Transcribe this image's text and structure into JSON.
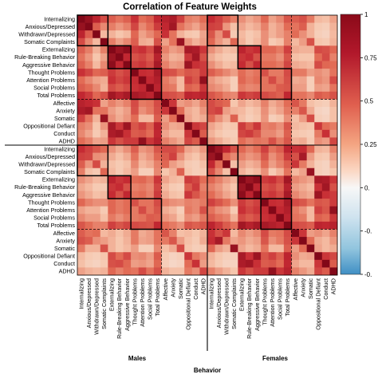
{
  "chart_data": {
    "type": "heatmap",
    "title": "Correlation of Feature Weights",
    "xlabel": "Behavior",
    "column_groups": [
      "Males",
      "Females"
    ],
    "row_groups": [
      "Males",
      "Females"
    ],
    "features": [
      "Internalizing",
      "Anxious/Depressed",
      "Withdrawn/Depressed",
      "Somatic Complaints",
      "Externalizing",
      "Rule-Breaking Behavior",
      "Aggressive Behavior",
      "Thought Problems",
      "Attention Problems",
      "Social Problems",
      "Total Problems",
      "Affective",
      "Anxiety",
      "Somatic",
      "Oppositional Defiant",
      "Conduct",
      "ADHD"
    ],
    "colorbar": {
      "ticks": [
        1,
        0.75,
        0.5,
        0.25,
        0,
        -0.25,
        -0.5
      ],
      "tick_labels": [
        "1",
        "0.75",
        "0.5",
        "0.25",
        "0.",
        "-0.",
        "-0."
      ],
      "range": [
        -0.5,
        1
      ],
      "colors": {
        "high": "#8b0a19",
        "mid": "#f7f7f7",
        "low": "#3f8fc4"
      }
    },
    "boxes": [
      [
        0,
        3
      ],
      [
        4,
        6
      ],
      [
        7,
        10
      ]
    ],
    "correlations": [
      [
        1.0,
        0.92,
        0.78,
        0.62,
        0.55,
        0.48,
        0.54,
        0.72,
        0.5,
        0.56,
        0.76,
        0.8,
        0.84,
        0.66,
        0.45,
        0.42,
        0.5,
        0.74,
        0.66,
        0.55,
        0.45,
        0.4,
        0.33,
        0.38,
        0.52,
        0.35,
        0.42,
        0.58,
        0.55,
        0.6,
        0.46,
        0.28,
        0.26,
        0.35
      ],
      [
        0.92,
        1.0,
        0.55,
        0.42,
        0.45,
        0.38,
        0.44,
        0.64,
        0.42,
        0.5,
        0.68,
        0.76,
        0.88,
        0.48,
        0.4,
        0.34,
        0.44,
        0.66,
        0.64,
        0.38,
        0.26,
        0.34,
        0.28,
        0.32,
        0.44,
        0.3,
        0.36,
        0.5,
        0.48,
        0.55,
        0.3,
        0.22,
        0.2,
        0.3
      ],
      [
        0.78,
        0.55,
        1.0,
        0.28,
        0.3,
        0.24,
        0.28,
        0.52,
        0.35,
        0.42,
        0.52,
        0.72,
        0.48,
        0.3,
        0.24,
        0.22,
        0.34,
        0.58,
        0.4,
        0.62,
        0.22,
        0.28,
        0.22,
        0.26,
        0.4,
        0.3,
        0.36,
        0.44,
        0.5,
        0.4,
        0.3,
        0.2,
        0.18,
        0.28
      ],
      [
        0.62,
        0.42,
        0.28,
        1.0,
        0.45,
        0.35,
        0.42,
        0.55,
        0.32,
        0.3,
        0.6,
        0.35,
        0.48,
        0.92,
        0.38,
        0.3,
        0.36,
        0.52,
        0.38,
        0.3,
        0.52,
        0.3,
        0.22,
        0.28,
        0.4,
        0.22,
        0.26,
        0.44,
        0.28,
        0.36,
        0.6,
        0.24,
        0.22,
        0.3
      ],
      [
        0.55,
        0.45,
        0.3,
        0.45,
        1.0,
        0.9,
        0.96,
        0.68,
        0.72,
        0.62,
        0.88,
        0.44,
        0.36,
        0.4,
        0.86,
        0.84,
        0.7,
        0.4,
        0.32,
        0.26,
        0.28,
        0.78,
        0.7,
        0.74,
        0.52,
        0.52,
        0.46,
        0.66,
        0.32,
        0.3,
        0.3,
        0.62,
        0.6,
        0.52
      ],
      [
        0.48,
        0.38,
        0.24,
        0.35,
        0.9,
        1.0,
        0.76,
        0.6,
        0.64,
        0.56,
        0.8,
        0.38,
        0.3,
        0.32,
        0.7,
        0.88,
        0.6,
        0.32,
        0.26,
        0.22,
        0.22,
        0.7,
        0.74,
        0.6,
        0.46,
        0.46,
        0.4,
        0.58,
        0.26,
        0.24,
        0.24,
        0.5,
        0.62,
        0.44
      ],
      [
        0.54,
        0.44,
        0.28,
        0.42,
        0.96,
        0.76,
        1.0,
        0.66,
        0.7,
        0.62,
        0.86,
        0.44,
        0.36,
        0.38,
        0.9,
        0.72,
        0.68,
        0.4,
        0.32,
        0.26,
        0.28,
        0.74,
        0.6,
        0.76,
        0.5,
        0.5,
        0.46,
        0.64,
        0.32,
        0.3,
        0.28,
        0.62,
        0.52,
        0.5
      ],
      [
        0.72,
        0.64,
        0.52,
        0.55,
        0.68,
        0.6,
        0.66,
        1.0,
        0.74,
        0.72,
        0.86,
        0.62,
        0.6,
        0.5,
        0.58,
        0.56,
        0.68,
        0.55,
        0.48,
        0.42,
        0.36,
        0.5,
        0.44,
        0.48,
        0.6,
        0.46,
        0.46,
        0.62,
        0.46,
        0.46,
        0.36,
        0.4,
        0.36,
        0.48
      ],
      [
        0.5,
        0.42,
        0.35,
        0.32,
        0.72,
        0.64,
        0.7,
        0.74,
        1.0,
        0.76,
        0.82,
        0.46,
        0.4,
        0.28,
        0.66,
        0.58,
        0.94,
        0.38,
        0.32,
        0.28,
        0.2,
        0.52,
        0.46,
        0.5,
        0.48,
        0.62,
        0.48,
        0.6,
        0.32,
        0.34,
        0.2,
        0.42,
        0.38,
        0.62
      ],
      [
        0.56,
        0.5,
        0.42,
        0.3,
        0.62,
        0.56,
        0.62,
        0.72,
        0.76,
        1.0,
        0.78,
        0.48,
        0.46,
        0.28,
        0.54,
        0.5,
        0.7,
        0.42,
        0.38,
        0.32,
        0.2,
        0.46,
        0.42,
        0.44,
        0.48,
        0.48,
        0.56,
        0.58,
        0.36,
        0.36,
        0.2,
        0.36,
        0.34,
        0.48
      ],
      [
        0.76,
        0.68,
        0.52,
        0.6,
        0.88,
        0.8,
        0.86,
        0.86,
        0.82,
        0.78,
        1.0,
        0.62,
        0.6,
        0.55,
        0.78,
        0.76,
        0.8,
        0.58,
        0.52,
        0.44,
        0.42,
        0.7,
        0.64,
        0.68,
        0.62,
        0.58,
        0.54,
        0.76,
        0.48,
        0.48,
        0.42,
        0.56,
        0.52,
        0.6
      ],
      [
        0.8,
        0.76,
        0.72,
        0.35,
        0.44,
        0.38,
        0.44,
        0.62,
        0.46,
        0.48,
        0.62,
        1.0,
        0.7,
        0.36,
        0.4,
        0.34,
        0.44,
        0.62,
        0.56,
        0.52,
        0.24,
        0.34,
        0.28,
        0.32,
        0.44,
        0.32,
        0.38,
        0.5,
        0.58,
        0.46,
        0.26,
        0.22,
        0.2,
        0.3
      ],
      [
        0.84,
        0.88,
        0.48,
        0.48,
        0.36,
        0.3,
        0.36,
        0.6,
        0.4,
        0.46,
        0.6,
        0.7,
        1.0,
        0.5,
        0.32,
        0.28,
        0.38,
        0.62,
        0.66,
        0.36,
        0.3,
        0.28,
        0.22,
        0.26,
        0.4,
        0.28,
        0.34,
        0.46,
        0.44,
        0.58,
        0.32,
        0.18,
        0.16,
        0.26
      ],
      [
        0.66,
        0.48,
        0.3,
        0.92,
        0.4,
        0.32,
        0.38,
        0.5,
        0.28,
        0.28,
        0.55,
        0.36,
        0.5,
        1.0,
        0.34,
        0.28,
        0.32,
        0.52,
        0.4,
        0.3,
        0.54,
        0.26,
        0.2,
        0.24,
        0.38,
        0.2,
        0.24,
        0.4,
        0.26,
        0.36,
        0.62,
        0.2,
        0.18,
        0.26
      ],
      [
        0.45,
        0.4,
        0.24,
        0.38,
        0.86,
        0.7,
        0.9,
        0.58,
        0.66,
        0.54,
        0.78,
        0.4,
        0.32,
        0.34,
        1.0,
        0.7,
        0.64,
        0.34,
        0.28,
        0.22,
        0.24,
        0.68,
        0.56,
        0.7,
        0.44,
        0.46,
        0.4,
        0.58,
        0.28,
        0.26,
        0.24,
        0.7,
        0.5,
        0.46
      ],
      [
        0.42,
        0.34,
        0.22,
        0.3,
        0.84,
        0.88,
        0.72,
        0.56,
        0.58,
        0.5,
        0.76,
        0.34,
        0.28,
        0.28,
        0.7,
        1.0,
        0.56,
        0.3,
        0.24,
        0.2,
        0.2,
        0.64,
        0.68,
        0.58,
        0.42,
        0.42,
        0.36,
        0.54,
        0.24,
        0.22,
        0.2,
        0.46,
        0.72,
        0.4
      ],
      [
        0.5,
        0.44,
        0.34,
        0.36,
        0.7,
        0.6,
        0.68,
        0.68,
        0.94,
        0.7,
        0.8,
        0.44,
        0.38,
        0.32,
        0.64,
        0.56,
        1.0,
        0.38,
        0.32,
        0.26,
        0.22,
        0.5,
        0.44,
        0.48,
        0.46,
        0.6,
        0.46,
        0.58,
        0.3,
        0.32,
        0.22,
        0.4,
        0.36,
        0.64
      ],
      [
        0.74,
        0.66,
        0.58,
        0.52,
        0.4,
        0.32,
        0.4,
        0.55,
        0.38,
        0.42,
        0.58,
        0.62,
        0.62,
        0.52,
        0.34,
        0.3,
        0.38,
        1.0,
        0.9,
        0.76,
        0.6,
        0.52,
        0.44,
        0.5,
        0.66,
        0.48,
        0.55,
        0.78,
        0.72,
        0.74,
        0.52,
        0.3,
        0.28,
        0.44
      ],
      [
        0.66,
        0.64,
        0.4,
        0.38,
        0.32,
        0.26,
        0.32,
        0.48,
        0.32,
        0.38,
        0.52,
        0.56,
        0.66,
        0.4,
        0.28,
        0.24,
        0.32,
        0.9,
        1.0,
        0.5,
        0.42,
        0.44,
        0.38,
        0.42,
        0.58,
        0.4,
        0.48,
        0.68,
        0.6,
        0.86,
        0.36,
        0.24,
        0.22,
        0.36
      ],
      [
        0.55,
        0.38,
        0.62,
        0.3,
        0.26,
        0.22,
        0.26,
        0.42,
        0.28,
        0.32,
        0.44,
        0.52,
        0.36,
        0.3,
        0.22,
        0.2,
        0.26,
        0.76,
        0.5,
        1.0,
        0.26,
        0.36,
        0.3,
        0.34,
        0.5,
        0.36,
        0.44,
        0.56,
        0.7,
        0.46,
        0.3,
        0.2,
        0.18,
        0.3
      ],
      [
        0.45,
        0.26,
        0.22,
        0.52,
        0.28,
        0.22,
        0.28,
        0.36,
        0.2,
        0.2,
        0.42,
        0.24,
        0.3,
        0.54,
        0.24,
        0.2,
        0.22,
        0.6,
        0.42,
        0.26,
        1.0,
        0.3,
        0.24,
        0.28,
        0.4,
        0.22,
        0.3,
        0.48,
        0.28,
        0.34,
        0.92,
        0.2,
        0.18,
        0.24
      ],
      [
        0.4,
        0.34,
        0.28,
        0.3,
        0.78,
        0.7,
        0.74,
        0.5,
        0.52,
        0.46,
        0.7,
        0.34,
        0.28,
        0.26,
        0.68,
        0.64,
        0.5,
        0.52,
        0.44,
        0.36,
        0.3,
        1.0,
        0.9,
        0.96,
        0.68,
        0.72,
        0.62,
        0.88,
        0.42,
        0.38,
        0.34,
        0.86,
        0.84,
        0.7
      ],
      [
        0.33,
        0.28,
        0.22,
        0.22,
        0.7,
        0.74,
        0.6,
        0.44,
        0.46,
        0.42,
        0.64,
        0.28,
        0.22,
        0.2,
        0.56,
        0.68,
        0.44,
        0.44,
        0.38,
        0.3,
        0.24,
        0.9,
        1.0,
        0.78,
        0.6,
        0.64,
        0.56,
        0.8,
        0.36,
        0.32,
        0.28,
        0.72,
        0.88,
        0.6
      ],
      [
        0.38,
        0.32,
        0.26,
        0.28,
        0.74,
        0.6,
        0.76,
        0.48,
        0.5,
        0.44,
        0.68,
        0.32,
        0.26,
        0.24,
        0.7,
        0.58,
        0.48,
        0.5,
        0.42,
        0.34,
        0.28,
        0.96,
        0.78,
        1.0,
        0.66,
        0.7,
        0.62,
        0.86,
        0.42,
        0.36,
        0.32,
        0.9,
        0.72,
        0.68
      ],
      [
        0.52,
        0.44,
        0.4,
        0.4,
        0.52,
        0.46,
        0.5,
        0.6,
        0.48,
        0.48,
        0.62,
        0.44,
        0.4,
        0.38,
        0.44,
        0.42,
        0.46,
        0.66,
        0.58,
        0.5,
        0.4,
        0.68,
        0.6,
        0.66,
        1.0,
        0.74,
        0.72,
        0.86,
        0.62,
        0.58,
        0.48,
        0.58,
        0.56,
        0.68
      ],
      [
        0.35,
        0.3,
        0.3,
        0.22,
        0.52,
        0.46,
        0.5,
        0.46,
        0.62,
        0.48,
        0.58,
        0.32,
        0.28,
        0.2,
        0.46,
        0.42,
        0.6,
        0.48,
        0.4,
        0.36,
        0.22,
        0.72,
        0.64,
        0.7,
        0.74,
        1.0,
        0.76,
        0.82,
        0.46,
        0.4,
        0.28,
        0.66,
        0.58,
        0.94
      ],
      [
        0.42,
        0.36,
        0.36,
        0.26,
        0.46,
        0.4,
        0.46,
        0.46,
        0.48,
        0.56,
        0.54,
        0.38,
        0.34,
        0.24,
        0.4,
        0.36,
        0.46,
        0.55,
        0.48,
        0.44,
        0.3,
        0.62,
        0.56,
        0.62,
        0.72,
        0.76,
        1.0,
        0.78,
        0.48,
        0.46,
        0.28,
        0.54,
        0.5,
        0.7
      ],
      [
        0.58,
        0.5,
        0.44,
        0.44,
        0.66,
        0.58,
        0.64,
        0.62,
        0.6,
        0.58,
        0.76,
        0.5,
        0.46,
        0.4,
        0.58,
        0.54,
        0.58,
        0.78,
        0.68,
        0.56,
        0.48,
        0.88,
        0.8,
        0.86,
        0.86,
        0.82,
        0.78,
        1.0,
        0.62,
        0.6,
        0.55,
        0.78,
        0.76,
        0.8
      ],
      [
        0.55,
        0.48,
        0.5,
        0.28,
        0.32,
        0.26,
        0.32,
        0.46,
        0.32,
        0.36,
        0.48,
        0.58,
        0.44,
        0.26,
        0.28,
        0.24,
        0.3,
        0.72,
        0.6,
        0.7,
        0.28,
        0.42,
        0.36,
        0.42,
        0.62,
        0.46,
        0.48,
        0.62,
        1.0,
        0.7,
        0.36,
        0.4,
        0.34,
        0.44
      ],
      [
        0.6,
        0.55,
        0.4,
        0.36,
        0.3,
        0.24,
        0.3,
        0.46,
        0.34,
        0.36,
        0.48,
        0.46,
        0.58,
        0.36,
        0.26,
        0.22,
        0.32,
        0.74,
        0.86,
        0.46,
        0.34,
        0.38,
        0.32,
        0.36,
        0.58,
        0.4,
        0.46,
        0.6,
        0.7,
        1.0,
        0.5,
        0.32,
        0.28,
        0.38
      ],
      [
        0.46,
        0.3,
        0.3,
        0.6,
        0.3,
        0.24,
        0.28,
        0.36,
        0.2,
        0.2,
        0.42,
        0.26,
        0.32,
        0.62,
        0.24,
        0.2,
        0.22,
        0.52,
        0.36,
        0.3,
        0.92,
        0.34,
        0.28,
        0.32,
        0.48,
        0.28,
        0.28,
        0.55,
        0.36,
        0.5,
        1.0,
        0.34,
        0.28,
        0.32
      ],
      [
        0.28,
        0.22,
        0.2,
        0.24,
        0.62,
        0.5,
        0.62,
        0.4,
        0.42,
        0.36,
        0.56,
        0.22,
        0.18,
        0.2,
        0.7,
        0.46,
        0.4,
        0.3,
        0.24,
        0.2,
        0.2,
        0.86,
        0.72,
        0.9,
        0.58,
        0.66,
        0.54,
        0.78,
        0.4,
        0.32,
        0.34,
        1.0,
        0.7,
        0.64
      ],
      [
        0.26,
        0.2,
        0.18,
        0.22,
        0.6,
        0.62,
        0.52,
        0.36,
        0.38,
        0.34,
        0.52,
        0.2,
        0.16,
        0.18,
        0.5,
        0.72,
        0.36,
        0.28,
        0.22,
        0.18,
        0.18,
        0.84,
        0.88,
        0.72,
        0.56,
        0.58,
        0.5,
        0.76,
        0.34,
        0.28,
        0.28,
        0.7,
        1.0,
        0.56
      ],
      [
        0.35,
        0.3,
        0.28,
        0.3,
        0.52,
        0.44,
        0.5,
        0.48,
        0.62,
        0.48,
        0.6,
        0.3,
        0.26,
        0.26,
        0.46,
        0.4,
        0.64,
        0.44,
        0.36,
        0.3,
        0.24,
        0.7,
        0.6,
        0.68,
        0.68,
        0.94,
        0.7,
        0.8,
        0.44,
        0.38,
        0.32,
        0.64,
        0.56,
        1.0
      ]
    ]
  }
}
